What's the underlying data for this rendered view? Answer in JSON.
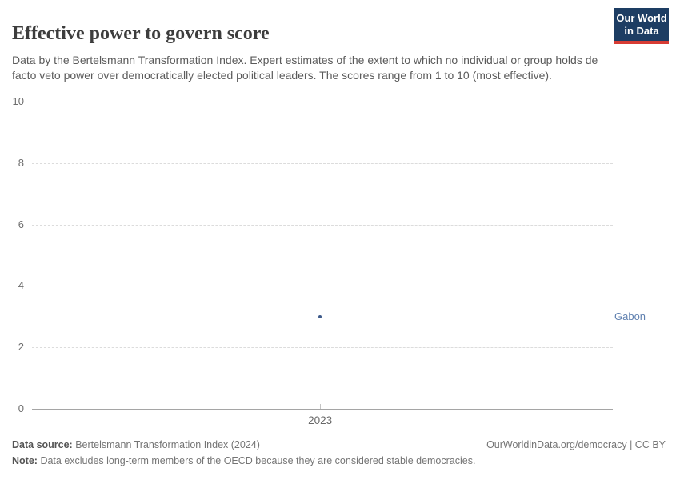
{
  "header": {
    "title": "Effective power to govern score",
    "subtitle": "Data by the Bertelsmann Transformation Index. Expert estimates of the extent to which no individual or group holds de facto veto power over democratically elected political leaders. The scores range from 1 to 10 (most effective).",
    "logo": {
      "line1": "Our World",
      "line2": "in Data",
      "bg_color": "#1d3d63",
      "bar_color": "#d73c34"
    }
  },
  "chart_data": {
    "type": "scatter",
    "title": "Effective power to govern score",
    "series": [
      {
        "name": "Gabon",
        "x": [
          2023
        ],
        "values": [
          3
        ],
        "color": "#3d5a8a",
        "label_color": "#6081b0"
      }
    ],
    "categories": [
      2023
    ],
    "xticks": [
      "2023"
    ],
    "yticks": [
      0,
      2,
      4,
      6,
      8,
      10
    ],
    "ylim": [
      0,
      10
    ],
    "xlabel": "",
    "ylabel": "",
    "grid": "horizontal-dashed",
    "legend_position": "entity-label-right-of-plot"
  },
  "footer": {
    "source_label": "Data source:",
    "source_text": "Bertelsmann Transformation Index (2024)",
    "attribution": "OurWorldinData.org/democracy | CC BY",
    "note_label": "Note:",
    "note_text": "Data excludes long-term members of the OECD because they are considered stable democracies."
  }
}
